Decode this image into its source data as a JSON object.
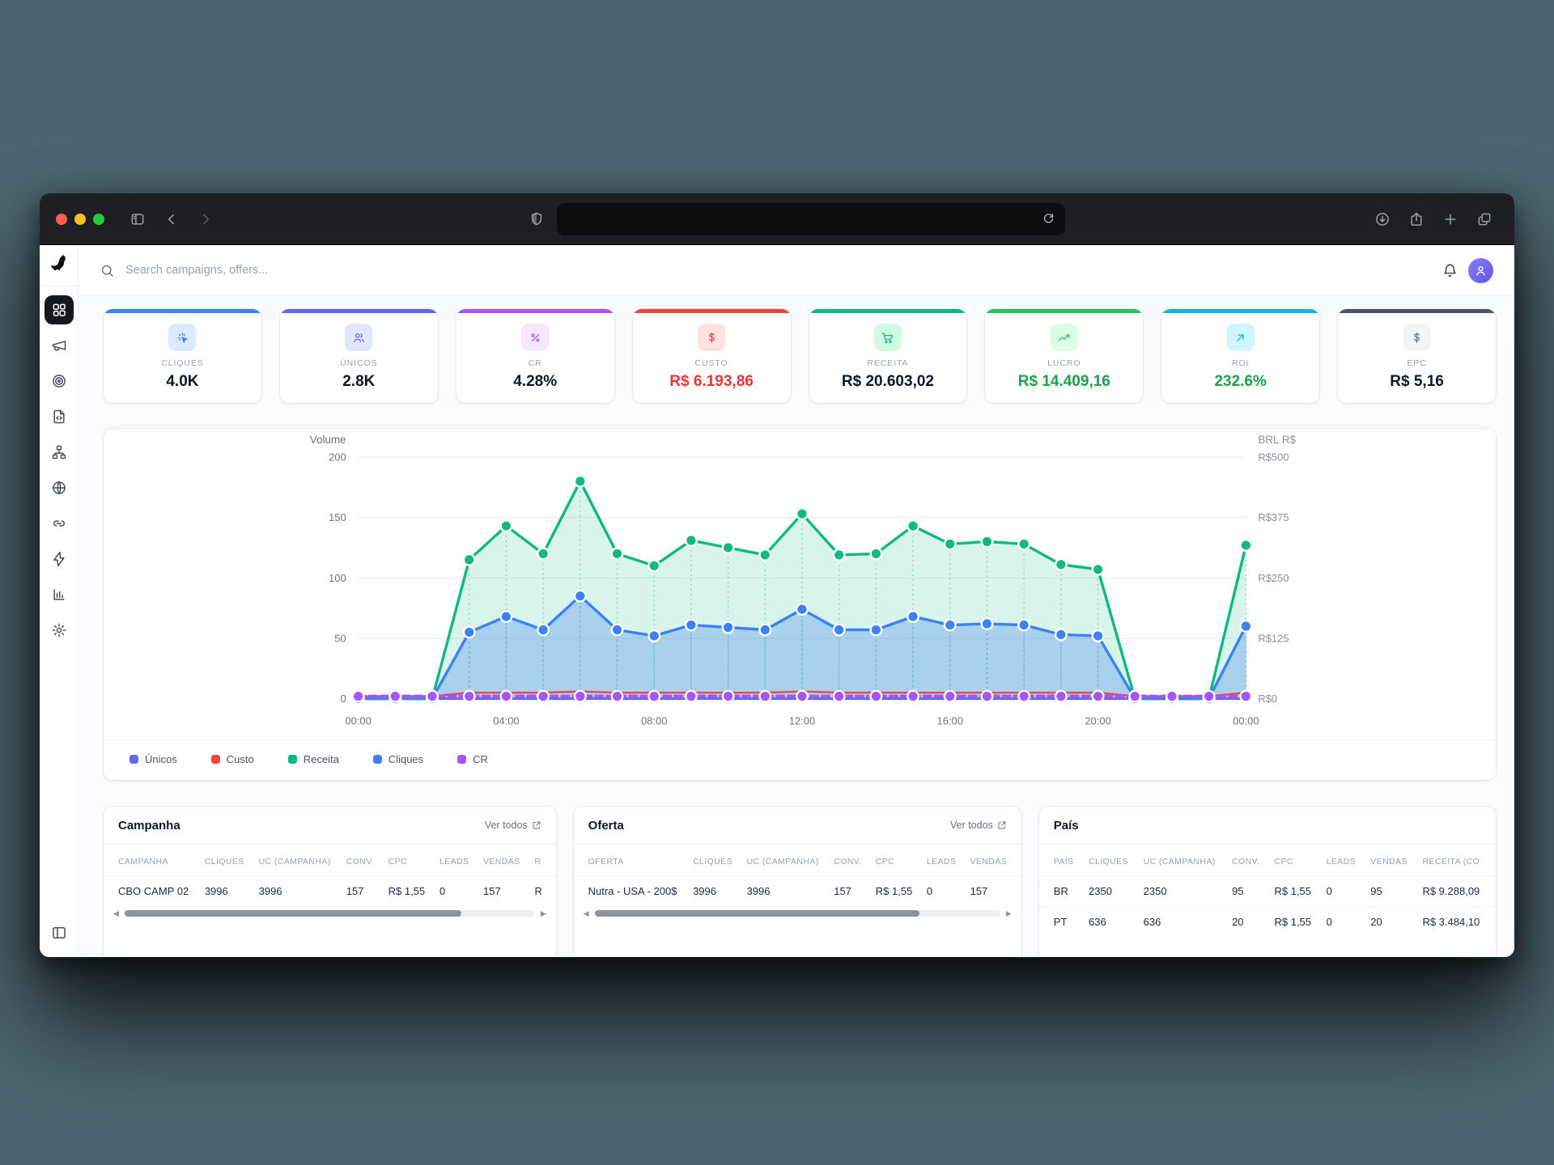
{
  "browser": {
    "traffic_lights": [
      "#ff5f57",
      "#febc2e",
      "#28c840"
    ],
    "url_value": "",
    "icons": [
      "panel-toggle",
      "back-chevron",
      "forward-chevron",
      "shield",
      "reload",
      "download",
      "share",
      "new-tab-plus",
      "tabs"
    ]
  },
  "header": {
    "search_placeholder": "Search campaigns, offers...",
    "icons": [
      "search",
      "bell",
      "avatar"
    ]
  },
  "sidebar": {
    "logo_icon": "dog",
    "items": [
      {
        "icon": "dashboard",
        "active": true
      },
      {
        "icon": "megaphone",
        "active": false
      },
      {
        "icon": "target",
        "active": false
      },
      {
        "icon": "file-code",
        "active": false
      },
      {
        "icon": "sitemap",
        "active": false
      },
      {
        "icon": "globe",
        "active": false
      },
      {
        "icon": "link",
        "active": false
      },
      {
        "icon": "zap",
        "active": false
      },
      {
        "icon": "bar-chart",
        "active": false
      },
      {
        "icon": "gear",
        "active": false
      }
    ],
    "bottom_icon": "panel"
  },
  "kpis": [
    {
      "label": "CLIQUES",
      "value": "4.0K",
      "accent": "#3b82f6",
      "icon": "cursor-click",
      "icon_bg": "#dbeafe",
      "icon_color": "#3b82f6",
      "value_color": "#0f172a"
    },
    {
      "label": "ÚNICOS",
      "value": "2.8K",
      "accent": "#6366f1",
      "icon": "users",
      "icon_bg": "#e0e7ff",
      "icon_color": "#6366f1",
      "value_color": "#0f172a"
    },
    {
      "label": "CR",
      "value": "4.28%",
      "accent": "#a855f7",
      "icon": "percent",
      "icon_bg": "#f3e8ff",
      "icon_color": "#a855f7",
      "value_color": "#0f172a"
    },
    {
      "label": "CUSTO",
      "value": "R$ 6.193,86",
      "accent": "#ef4444",
      "icon": "dollar",
      "icon_bg": "#fee2e2",
      "icon_color": "#ef4444",
      "value_color": "#ee3434"
    },
    {
      "label": "RECEITA",
      "value": "R$ 20.603,02",
      "accent": "#10b981",
      "icon": "cart",
      "icon_bg": "#d1fae5",
      "icon_color": "#10b981",
      "value_color": "#0f172a"
    },
    {
      "label": "LUCRO",
      "value": "R$ 14.409,16",
      "accent": "#22c55e",
      "icon": "trend-up",
      "icon_bg": "#dcfce7",
      "icon_color": "#22c55e",
      "value_color": "#16a34a"
    },
    {
      "label": "ROI",
      "value": "232.6%",
      "accent": "#13b3e4",
      "icon": "arrow-up-right",
      "icon_bg": "#cff5fe",
      "icon_color": "#13b3e4",
      "value_color": "#16a34a"
    },
    {
      "label": "EPC",
      "value": "R$ 5,16",
      "accent": "#4b5563",
      "icon": "dollar",
      "icon_bg": "#f3f4f6",
      "icon_color": "#6b7280",
      "value_color": "#0f172a"
    }
  ],
  "chart_data": {
    "type": "line",
    "x": [
      "00:00",
      "01:00",
      "02:00",
      "03:00",
      "04:00",
      "05:00",
      "06:00",
      "07:00",
      "08:00",
      "09:00",
      "10:00",
      "11:00",
      "12:00",
      "13:00",
      "14:00",
      "15:00",
      "16:00",
      "17:00",
      "18:00",
      "19:00",
      "20:00",
      "21:00",
      "22:00",
      "23:00",
      "00:00"
    ],
    "x_tick_labels": [
      "00:00",
      "04:00",
      "08:00",
      "12:00",
      "16:00",
      "20:00",
      "00:00"
    ],
    "x_tick_every": 4,
    "left_axis": {
      "title": "Volume",
      "ticks": [
        0,
        50,
        100,
        150,
        200
      ],
      "range": [
        0,
        200
      ]
    },
    "right_axis": {
      "title": "BRL R$",
      "ticks": [
        "R$0",
        "R$125",
        "R$250",
        "R$375",
        "R$500"
      ],
      "range_brl": [
        0,
        500
      ]
    },
    "grid": true,
    "legend_position": "bottom",
    "series": [
      {
        "name": "Únicos",
        "color": "#6366f1",
        "width": 3,
        "dots": false,
        "dashed": false,
        "fill": false,
        "values": [
          0,
          0,
          0,
          0,
          0,
          0,
          0,
          0,
          0,
          0,
          0,
          0,
          0,
          0,
          0,
          0,
          0,
          0,
          0,
          0,
          0,
          0,
          0,
          0,
          0
        ]
      },
      {
        "name": "Custo",
        "color": "#ef4444",
        "width": 2.4,
        "dots": false,
        "dashed": false,
        "fill": false,
        "values": [
          2,
          2,
          2,
          5,
          5,
          5,
          6,
          5,
          5,
          5,
          5,
          5,
          6,
          5,
          5,
          5,
          5,
          5,
          5,
          5,
          5,
          2,
          2,
          2,
          5
        ]
      },
      {
        "name": "Receita",
        "color": "#10b981",
        "width": 3.4,
        "dots": true,
        "dashed": false,
        "fill": true,
        "fill_color": "rgba(16,185,129,0.16)",
        "values": [
          0,
          0,
          0,
          115,
          143,
          120,
          180,
          120,
          110,
          131,
          125,
          119,
          153,
          119,
          120,
          143,
          128,
          130,
          128,
          111,
          107,
          0,
          0,
          0,
          127
        ]
      },
      {
        "name": "Cliques",
        "color": "#3b82f6",
        "width": 3.4,
        "dots": true,
        "dashed": false,
        "fill": true,
        "fill_color": "rgba(59,130,246,0.30)",
        "values": [
          0,
          0,
          0,
          55,
          68,
          57,
          85,
          57,
          52,
          61,
          59,
          57,
          74,
          57,
          57,
          68,
          61,
          62,
          61,
          53,
          52,
          0,
          0,
          0,
          60
        ]
      },
      {
        "name": "CR",
        "color": "#a855f7",
        "width": 4,
        "dots": true,
        "dashed": true,
        "fill": false,
        "values": [
          2,
          2,
          2,
          2,
          2,
          2,
          2,
          2,
          2,
          2,
          2,
          2,
          2,
          2,
          2,
          2,
          2,
          2,
          2,
          2,
          2,
          2,
          2,
          2,
          2
        ]
      }
    ]
  },
  "tables": [
    {
      "title": "Campanha",
      "link": "Ver todos",
      "scrollbar": true,
      "thumb_pct": 82,
      "columns": [
        "CAMPANHA",
        "CLIQUES",
        "UC (CAMPANHA)",
        "CONV.",
        "CPC",
        "LEADS",
        "VENDAS",
        "R"
      ],
      "rows": [
        [
          "CBO CAMP 02",
          "3996",
          "3996",
          "157",
          "R$ 1,55",
          "0",
          "157",
          "R"
        ]
      ]
    },
    {
      "title": "Oferta",
      "link": "Ver todos",
      "scrollbar": true,
      "thumb_pct": 80,
      "columns": [
        "OFERTA",
        "CLIQUES",
        "UC (CAMPANHA)",
        "CONV.",
        "CPC",
        "LEADS",
        "VENDAS"
      ],
      "rows": [
        [
          "Nutra - USA - 200$",
          "3996",
          "3996",
          "157",
          "R$ 1,55",
          "0",
          "157"
        ]
      ]
    },
    {
      "title": "País",
      "link": "",
      "scrollbar": false,
      "thumb_pct": 0,
      "columns": [
        "PAÍS",
        "CLIQUES",
        "UC (CAMPANHA)",
        "CONV.",
        "CPC",
        "LEADS",
        "VENDAS",
        "RECEITA (CO"
      ],
      "rows": [
        [
          "BR",
          "2350",
          "2350",
          "95",
          "R$ 1,55",
          "0",
          "95",
          "R$ 9.288,09"
        ],
        [
          "PT",
          "636",
          "636",
          "20",
          "R$ 1,55",
          "0",
          "20",
          "R$ 3.484,10"
        ]
      ]
    }
  ]
}
